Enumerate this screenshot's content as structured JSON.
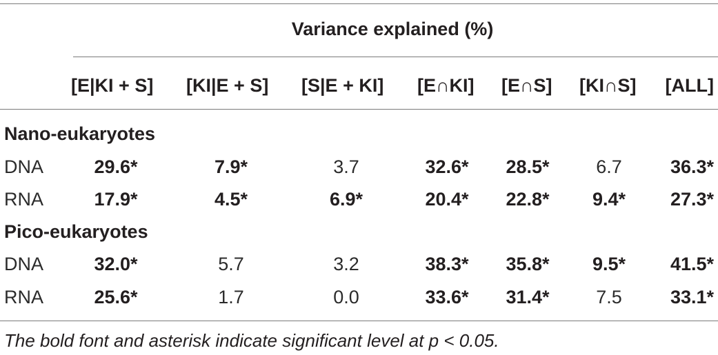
{
  "table": {
    "spanner_header": "Variance explained (%)",
    "columns": [
      "[E|KI + S]",
      "[KI|E + S]",
      "[S|E + KI]",
      "[E∩KI]",
      "[E∩S]",
      "[KI∩S]",
      "[ALL]"
    ],
    "groups": [
      {
        "label": "Nano-eukaryotes",
        "rows": [
          {
            "label": "DNA",
            "cells": [
              {
                "value": "29.6*",
                "significant": true
              },
              {
                "value": "7.9*",
                "significant": true
              },
              {
                "value": "3.7",
                "significant": false
              },
              {
                "value": "32.6*",
                "significant": true
              },
              {
                "value": "28.5*",
                "significant": true
              },
              {
                "value": "6.7",
                "significant": false
              },
              {
                "value": "36.3*",
                "significant": true
              }
            ]
          },
          {
            "label": "RNA",
            "cells": [
              {
                "value": "17.9*",
                "significant": true
              },
              {
                "value": "4.5*",
                "significant": true
              },
              {
                "value": "6.9*",
                "significant": true
              },
              {
                "value": "20.4*",
                "significant": true
              },
              {
                "value": "22.8*",
                "significant": true
              },
              {
                "value": "9.4*",
                "significant": true
              },
              {
                "value": "27.3*",
                "significant": true
              }
            ]
          }
        ]
      },
      {
        "label": "Pico-eukaryotes",
        "rows": [
          {
            "label": "DNA",
            "cells": [
              {
                "value": "32.0*",
                "significant": true
              },
              {
                "value": "5.7",
                "significant": false
              },
              {
                "value": "3.2",
                "significant": false
              },
              {
                "value": "38.3*",
                "significant": true
              },
              {
                "value": "35.8*",
                "significant": true
              },
              {
                "value": "9.5*",
                "significant": true
              },
              {
                "value": "41.5*",
                "significant": true
              }
            ]
          },
          {
            "label": "RNA",
            "cells": [
              {
                "value": "25.6*",
                "significant": true
              },
              {
                "value": "1.7",
                "significant": false
              },
              {
                "value": "0.0",
                "significant": false
              },
              {
                "value": "33.6*",
                "significant": true
              },
              {
                "value": "31.4*",
                "significant": true
              },
              {
                "value": "7.5",
                "significant": false
              },
              {
                "value": "33.1*",
                "significant": true
              }
            ]
          }
        ]
      }
    ],
    "footnote": "The bold font and asterisk indicate significant level at p < 0.05."
  }
}
